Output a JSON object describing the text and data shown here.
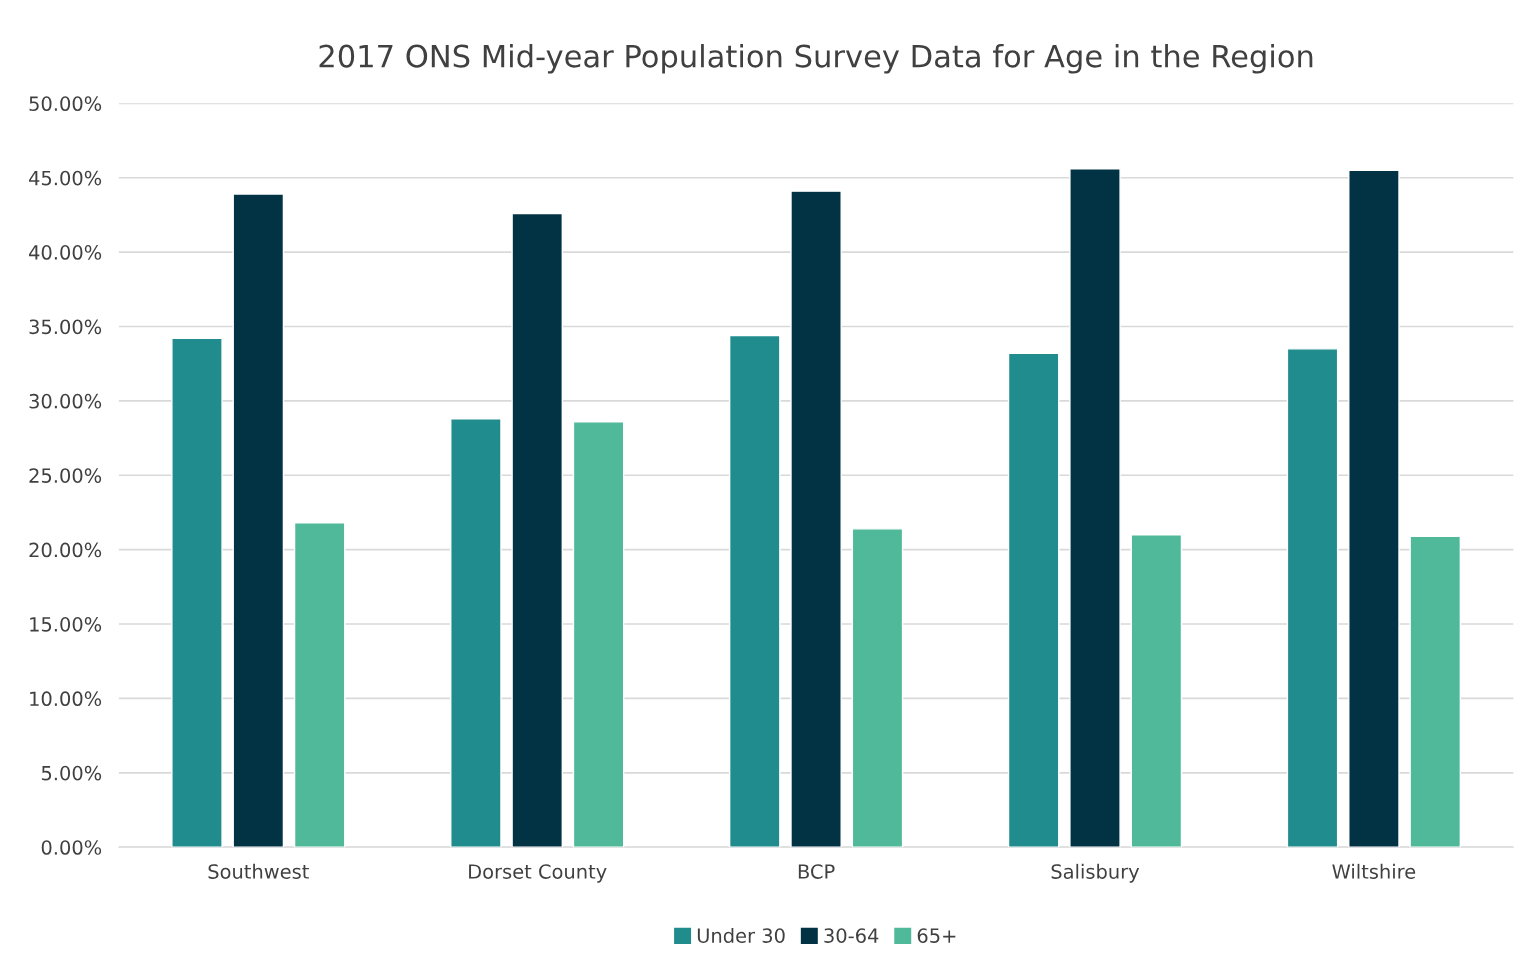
{
  "chart_data": {
    "type": "bar",
    "title": "2017 ONS Mid-year Population Survey Data for Age in the Region",
    "categories": [
      "Southwest",
      "Dorset County",
      "BCP",
      "Salisbury",
      "Wiltshire"
    ],
    "series": [
      {
        "name": "Under 30",
        "color": "#218c8d",
        "values": [
          34.2,
          28.8,
          34.4,
          33.2,
          33.5
        ]
      },
      {
        "name": "30-64",
        "color": "#023345",
        "values": [
          43.9,
          42.6,
          44.1,
          45.6,
          45.5
        ]
      },
      {
        "name": "65+",
        "color": "#4fb99a",
        "values": [
          21.8,
          28.6,
          21.4,
          21.0,
          20.9
        ]
      }
    ],
    "ylim": [
      0,
      50
    ],
    "yticks": [
      {
        "value": 0,
        "label": "0.00%"
      },
      {
        "value": 5,
        "label": "5.00%"
      },
      {
        "value": 10,
        "label": "10.00%"
      },
      {
        "value": 15,
        "label": "15.00%"
      },
      {
        "value": 20,
        "label": "20.00%"
      },
      {
        "value": 25,
        "label": "25.00%"
      },
      {
        "value": 30,
        "label": "30.00%"
      },
      {
        "value": 35,
        "label": "35.00%"
      },
      {
        "value": 40,
        "label": "40.00%"
      },
      {
        "value": 45,
        "label": "45.00%"
      },
      {
        "value": 50,
        "label": "50.00%"
      }
    ],
    "grid": "y",
    "legend": "bottom"
  }
}
